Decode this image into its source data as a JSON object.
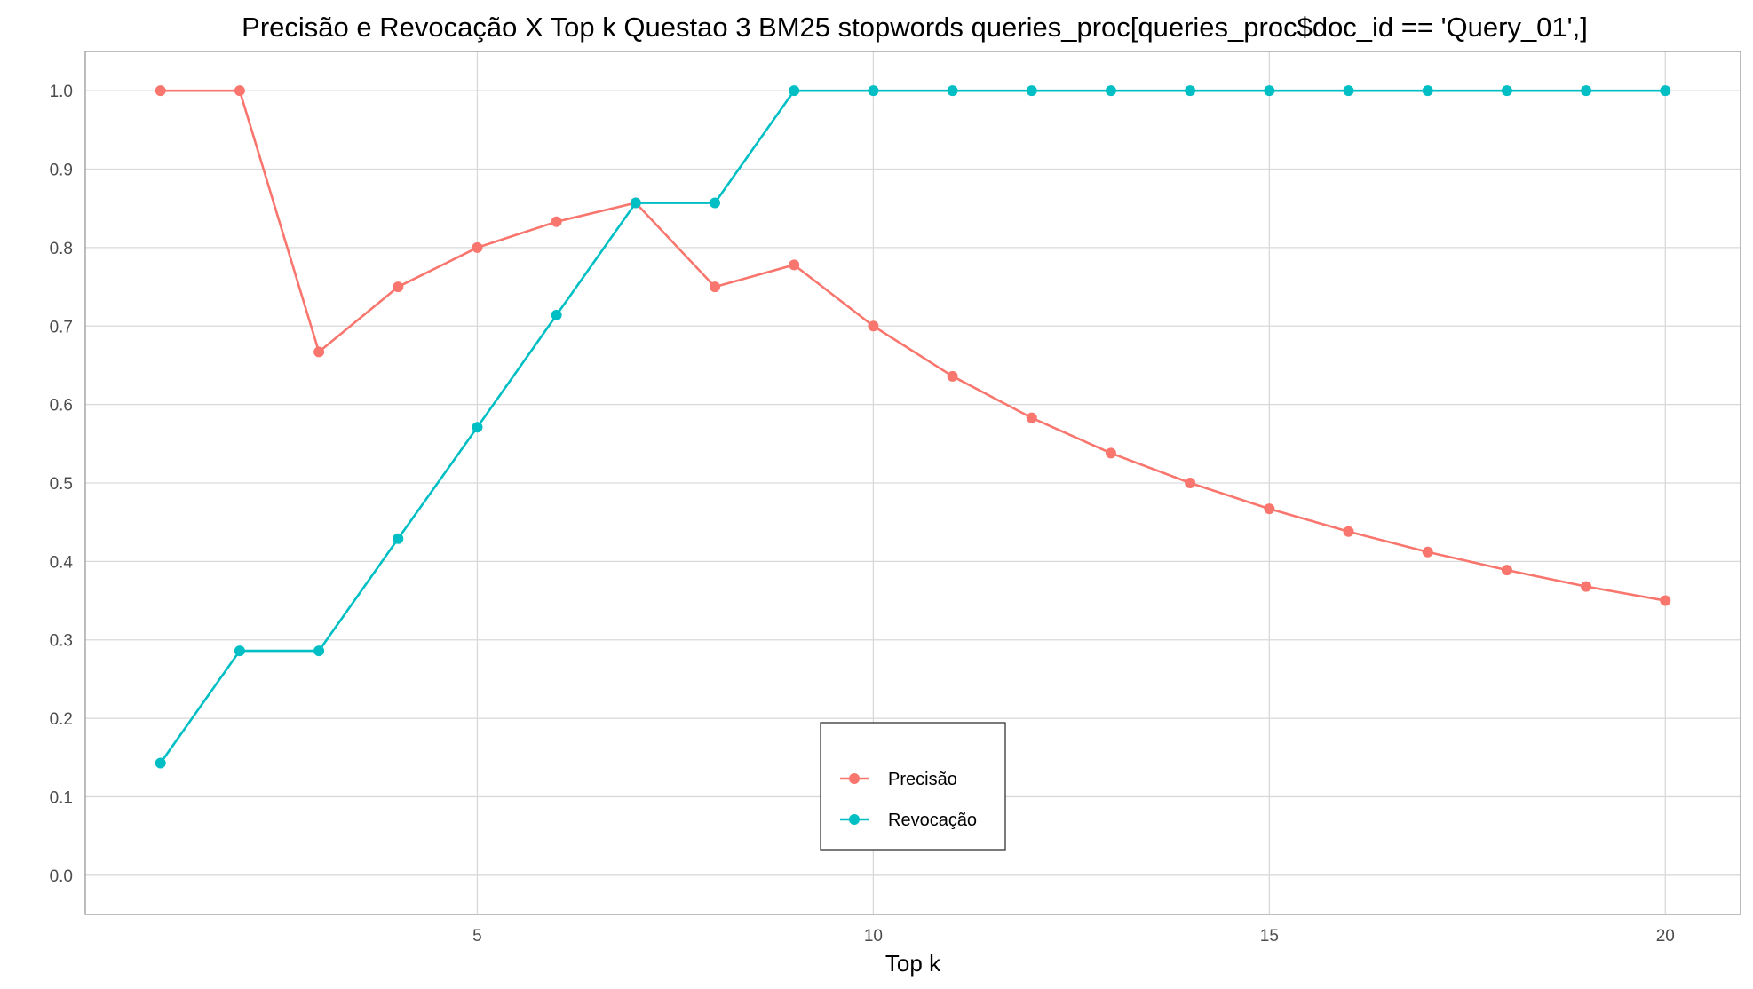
{
  "chart_data": {
    "type": "line",
    "title": "Precisão e Revocação X Top k Questao 3 BM25 stopwords queries_proc[queries_proc$doc_id == 'Query_01',]",
    "xlabel": "Top k",
    "ylabel": "",
    "x": [
      1,
      2,
      3,
      4,
      5,
      6,
      7,
      8,
      9,
      10,
      11,
      12,
      13,
      14,
      15,
      16,
      17,
      18,
      19,
      20
    ],
    "xlim": [
      0.05,
      20.95
    ],
    "ylim": [
      -0.05,
      1.05
    ],
    "x_ticks": [
      5,
      10,
      15,
      20
    ],
    "x_tick_labels": [
      "5",
      "10",
      "15",
      "20"
    ],
    "y_ticks": [
      0.0,
      0.1,
      0.2,
      0.3,
      0.4,
      0.5,
      0.6,
      0.7,
      0.8,
      0.9,
      1.0
    ],
    "y_tick_labels": [
      "0.0",
      "0.1",
      "0.2",
      "0.3",
      "0.4",
      "0.5",
      "0.6",
      "0.7",
      "0.8",
      "0.9",
      "1.0"
    ],
    "grid": true,
    "legend_position": "bottom-center",
    "series": [
      {
        "name": "Precisão",
        "color": "#F8766D",
        "values": [
          1.0,
          1.0,
          0.667,
          0.75,
          0.8,
          0.833,
          0.857,
          0.75,
          0.778,
          0.7,
          0.636,
          0.583,
          0.538,
          0.5,
          0.467,
          0.438,
          0.412,
          0.389,
          0.368,
          0.35
        ]
      },
      {
        "name": "Revocação",
        "color": "#00BFC4",
        "values": [
          0.143,
          0.286,
          0.286,
          0.429,
          0.571,
          0.714,
          0.857,
          0.857,
          1.0,
          1.0,
          1.0,
          1.0,
          1.0,
          1.0,
          1.0,
          1.0,
          1.0,
          1.0,
          1.0,
          1.0
        ]
      }
    ]
  }
}
